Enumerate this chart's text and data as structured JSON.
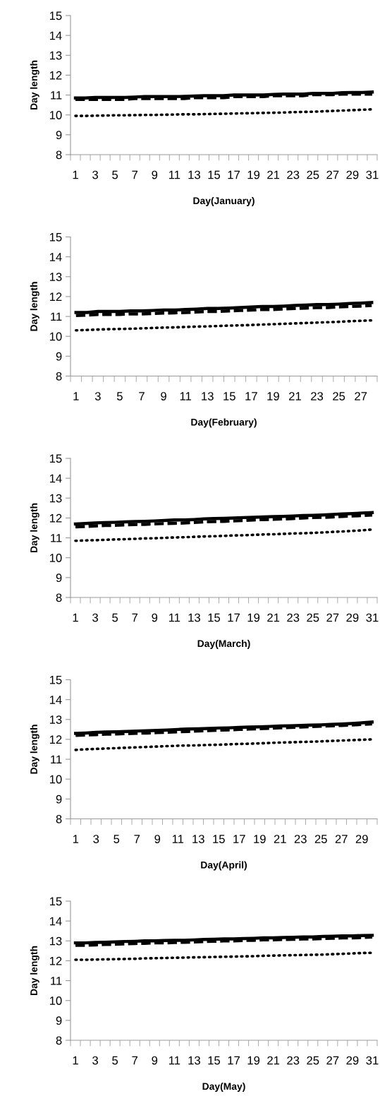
{
  "chart_data": [
    {
      "type": "line",
      "xlabel": "Day(January)",
      "ylabel": "Day length",
      "ylim": [
        8,
        15
      ],
      "yticks": [
        8,
        9,
        10,
        11,
        12,
        13,
        14,
        15
      ],
      "grid": false,
      "marker": "none",
      "categories": [
        "1",
        null,
        "3",
        null,
        "5",
        null,
        "7",
        null,
        "9",
        null,
        "11",
        null,
        "13",
        null,
        "15",
        null,
        "17",
        null,
        "19",
        null,
        "21",
        null,
        "23",
        null,
        "25",
        null,
        "27",
        null,
        "29",
        null,
        "31"
      ],
      "series": [
        {
          "color": "#000000",
          "line_style": "solid",
          "values": [
            10.85,
            10.85,
            10.88,
            10.88,
            10.88,
            10.88,
            10.9,
            10.92,
            10.92,
            10.92,
            10.92,
            10.93,
            10.95,
            10.97,
            10.97,
            10.97,
            11.0,
            11.0,
            11.0,
            11.0,
            11.03,
            11.05,
            11.05,
            11.05,
            11.08,
            11.08,
            11.08,
            11.12,
            11.13,
            11.13,
            11.15
          ]
        },
        {
          "color": "#000000",
          "line_style": "dashed",
          "values": [
            10.78,
            10.78,
            10.78,
            10.78,
            10.78,
            10.78,
            10.82,
            10.82,
            10.82,
            10.82,
            10.82,
            10.82,
            10.87,
            10.87,
            10.87,
            10.87,
            10.92,
            10.92,
            10.92,
            10.92,
            10.97,
            10.97,
            10.97,
            10.97,
            11.02,
            11.02,
            11.02,
            11.05,
            11.05,
            11.05,
            11.05
          ]
        },
        {
          "color": "#000000",
          "line_style": "dotted",
          "values": [
            9.95,
            9.95,
            9.96,
            9.97,
            9.98,
            9.98,
            9.99,
            10.0,
            10.0,
            10.01,
            10.02,
            10.03,
            10.03,
            10.04,
            10.05,
            10.06,
            10.07,
            10.08,
            10.09,
            10.1,
            10.11,
            10.12,
            10.14,
            10.15,
            10.16,
            10.18,
            10.2,
            10.22,
            10.24,
            10.26,
            10.28
          ]
        }
      ]
    },
    {
      "type": "line",
      "xlabel": "Day(February)",
      "ylabel": "Day length",
      "ylim": [
        8,
        15
      ],
      "yticks": [
        8,
        9,
        10,
        11,
        12,
        13,
        14,
        15
      ],
      "grid": false,
      "marker": "none",
      "categories": [
        "1",
        null,
        "3",
        null,
        "5",
        null,
        "7",
        null,
        "9",
        null,
        "11",
        null,
        "13",
        null,
        "15",
        null,
        "17",
        null,
        "19",
        null,
        "21",
        null,
        "23",
        null,
        "25",
        null,
        "27",
        null
      ],
      "series": [
        {
          "color": "#000000",
          "line_style": "solid",
          "values": [
            11.2,
            11.2,
            11.25,
            11.25,
            11.25,
            11.28,
            11.28,
            11.3,
            11.32,
            11.32,
            11.35,
            11.37,
            11.4,
            11.4,
            11.42,
            11.45,
            11.47,
            11.5,
            11.5,
            11.52,
            11.55,
            11.57,
            11.6,
            11.6,
            11.62,
            11.65,
            11.67,
            11.7
          ]
        },
        {
          "color": "#000000",
          "line_style": "dashed",
          "values": [
            11.05,
            11.07,
            11.1,
            11.1,
            11.1,
            11.13,
            11.13,
            11.15,
            11.17,
            11.18,
            11.2,
            11.22,
            11.25,
            11.25,
            11.28,
            11.3,
            11.32,
            11.35,
            11.35,
            11.38,
            11.4,
            11.42,
            11.45,
            11.45,
            11.48,
            11.5,
            11.52,
            11.55
          ]
        },
        {
          "color": "#000000",
          "line_style": "dotted",
          "values": [
            10.3,
            10.32,
            10.34,
            10.36,
            10.37,
            10.38,
            10.4,
            10.42,
            10.44,
            10.45,
            10.47,
            10.49,
            10.5,
            10.52,
            10.54,
            10.55,
            10.57,
            10.59,
            10.61,
            10.63,
            10.65,
            10.67,
            10.69,
            10.71,
            10.73,
            10.76,
            10.78,
            10.8
          ]
        }
      ]
    },
    {
      "type": "line",
      "xlabel": "Day(March)",
      "ylabel": "Day length",
      "ylim": [
        8,
        15
      ],
      "yticks": [
        8,
        9,
        10,
        11,
        12,
        13,
        14,
        15
      ],
      "grid": false,
      "marker": "none",
      "categories": [
        "1",
        null,
        "3",
        null,
        "5",
        null,
        "7",
        null,
        "9",
        null,
        "11",
        null,
        "13",
        null,
        "15",
        null,
        "17",
        null,
        "19",
        null,
        "21",
        null,
        "23",
        null,
        "25",
        null,
        "27",
        null,
        "29",
        null,
        "31"
      ],
      "series": [
        {
          "color": "#000000",
          "line_style": "solid",
          "values": [
            11.7,
            11.72,
            11.75,
            11.77,
            11.78,
            11.8,
            11.82,
            11.83,
            11.85,
            11.87,
            11.9,
            11.9,
            11.92,
            11.95,
            11.97,
            11.98,
            12.0,
            12.02,
            12.03,
            12.05,
            12.07,
            12.08,
            12.1,
            12.12,
            12.13,
            12.15,
            12.18,
            12.2,
            12.22,
            12.25,
            12.27
          ]
        },
        {
          "color": "#000000",
          "line_style": "dashed",
          "values": [
            11.55,
            11.57,
            11.6,
            11.62,
            11.63,
            11.65,
            11.67,
            11.68,
            11.7,
            11.72,
            11.73,
            11.75,
            11.77,
            11.8,
            11.82,
            11.83,
            11.85,
            11.87,
            11.9,
            11.92,
            11.93,
            11.95,
            11.97,
            12.0,
            12.02,
            12.03,
            12.05,
            12.08,
            12.1,
            12.12,
            12.15
          ]
        },
        {
          "color": "#000000",
          "line_style": "dotted",
          "values": [
            10.85,
            10.87,
            10.88,
            10.9,
            10.92,
            10.93,
            10.95,
            10.97,
            10.98,
            11.0,
            11.02,
            11.03,
            11.05,
            11.07,
            11.08,
            11.1,
            11.12,
            11.13,
            11.15,
            11.17,
            11.18,
            11.2,
            11.22,
            11.23,
            11.25,
            11.27,
            11.3,
            11.32,
            11.35,
            11.38,
            11.42
          ]
        }
      ]
    },
    {
      "type": "line",
      "xlabel": "Day(April)",
      "ylabel": "Day length",
      "ylim": [
        8,
        15
      ],
      "yticks": [
        8,
        9,
        10,
        11,
        12,
        13,
        14,
        15
      ],
      "grid": false,
      "marker": "none",
      "categories": [
        "1",
        null,
        "3",
        null,
        "5",
        null,
        "7",
        null,
        "9",
        null,
        "11",
        null,
        "13",
        null,
        "15",
        null,
        "17",
        null,
        "19",
        null,
        "21",
        null,
        "23",
        null,
        "25",
        null,
        "27",
        null,
        "29",
        null
      ],
      "series": [
        {
          "color": "#000000",
          "line_style": "solid",
          "values": [
            12.3,
            12.32,
            12.35,
            12.37,
            12.38,
            12.4,
            12.42,
            12.43,
            12.45,
            12.47,
            12.5,
            12.52,
            12.53,
            12.55,
            12.57,
            12.58,
            12.6,
            12.62,
            12.63,
            12.65,
            12.67,
            12.68,
            12.7,
            12.72,
            12.73,
            12.75,
            12.77,
            12.8,
            12.83,
            12.87
          ]
        },
        {
          "color": "#000000",
          "line_style": "dashed",
          "values": [
            12.2,
            12.22,
            12.24,
            12.26,
            12.27,
            12.29,
            12.31,
            12.32,
            12.34,
            12.36,
            12.38,
            12.4,
            12.42,
            12.44,
            12.46,
            12.48,
            12.5,
            12.52,
            12.54,
            12.56,
            12.58,
            12.6,
            12.62,
            12.64,
            12.66,
            12.68,
            12.7,
            12.72,
            12.75,
            12.78
          ]
        },
        {
          "color": "#000000",
          "line_style": "dotted",
          "values": [
            11.47,
            11.5,
            11.52,
            11.54,
            11.56,
            11.58,
            11.6,
            11.62,
            11.64,
            11.66,
            11.68,
            11.69,
            11.7,
            11.72,
            11.73,
            11.75,
            11.77,
            11.78,
            11.8,
            11.82,
            11.84,
            11.85,
            11.87,
            11.88,
            11.9,
            11.92,
            11.94,
            11.96,
            11.98,
            12.0
          ]
        }
      ]
    },
    {
      "type": "line",
      "xlabel": "Day(May)",
      "ylabel": "Day length",
      "ylim": [
        8,
        15
      ],
      "yticks": [
        8,
        9,
        10,
        11,
        12,
        13,
        14,
        15
      ],
      "grid": false,
      "marker": "none",
      "categories": [
        "1",
        null,
        "3",
        null,
        "5",
        null,
        "7",
        null,
        "9",
        null,
        "11",
        null,
        "13",
        null,
        "15",
        null,
        "17",
        null,
        "19",
        null,
        "21",
        null,
        "23",
        null,
        "25",
        null,
        "27",
        null,
        "29",
        null,
        "31"
      ],
      "series": [
        {
          "color": "#000000",
          "line_style": "solid",
          "values": [
            12.9,
            12.9,
            12.92,
            12.93,
            12.95,
            12.97,
            12.98,
            13.0,
            13.0,
            13.02,
            13.03,
            13.03,
            13.05,
            13.07,
            13.08,
            13.1,
            13.1,
            13.12,
            13.13,
            13.15,
            13.15,
            13.17,
            13.18,
            13.2,
            13.2,
            13.22,
            13.23,
            13.25,
            13.25,
            13.27,
            13.28
          ]
        },
        {
          "color": "#000000",
          "line_style": "dashed",
          "values": [
            12.78,
            12.78,
            12.8,
            12.82,
            12.83,
            12.85,
            12.87,
            12.88,
            12.9,
            12.9,
            12.92,
            12.93,
            12.95,
            12.97,
            12.98,
            13.0,
            13.0,
            13.02,
            13.03,
            13.05,
            13.05,
            13.07,
            13.08,
            13.1,
            13.1,
            13.12,
            13.13,
            13.15,
            13.15,
            13.17,
            13.2
          ]
        },
        {
          "color": "#000000",
          "line_style": "dotted",
          "values": [
            12.05,
            12.05,
            12.06,
            12.07,
            12.08,
            12.09,
            12.1,
            12.12,
            12.13,
            12.14,
            12.15,
            12.16,
            12.17,
            12.18,
            12.19,
            12.2,
            12.21,
            12.22,
            12.23,
            12.25,
            12.26,
            12.27,
            12.28,
            12.29,
            12.3,
            12.31,
            12.33,
            12.35,
            12.37,
            12.39,
            12.4
          ]
        }
      ]
    }
  ]
}
